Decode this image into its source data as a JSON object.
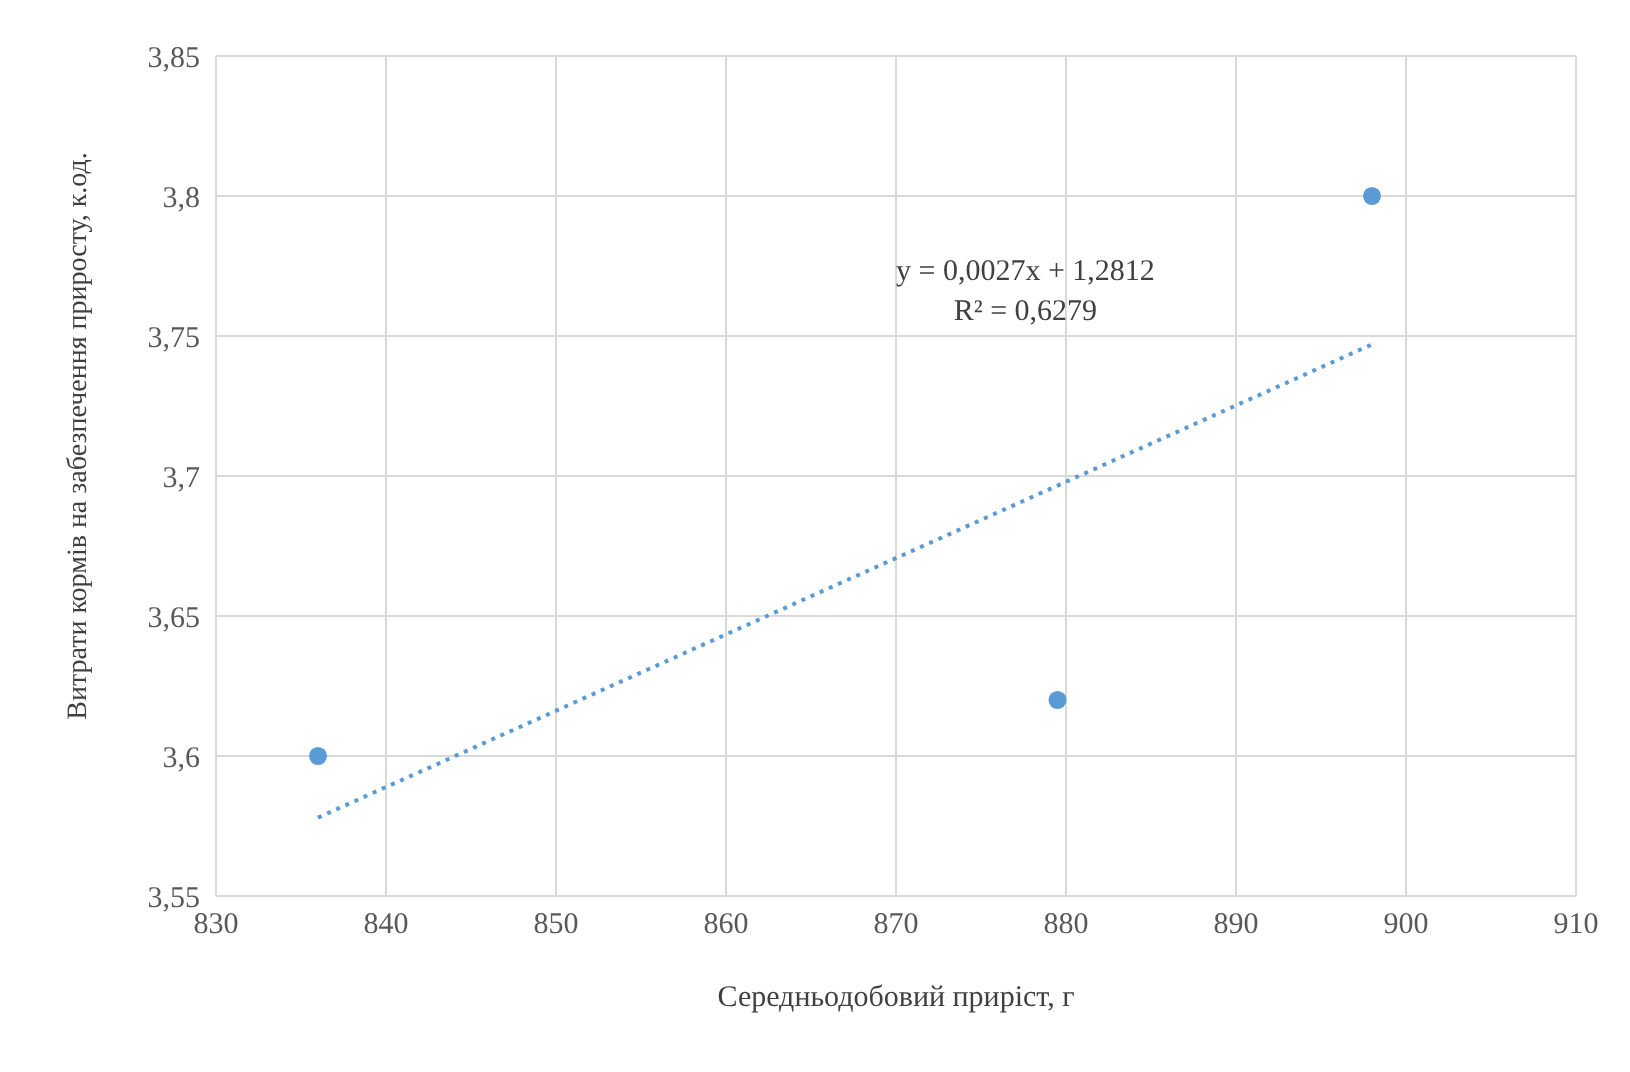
{
  "chart_data": {
    "type": "scatter",
    "xlabel": "Середньодобовий приріст, г",
    "ylabel": "Витрати кормів на забезпечення приросту, к.од.",
    "series": [
      {
        "color": "#5b9bd5",
        "x": [
          836,
          879.5,
          898
        ],
        "values": [
          3.6,
          3.62,
          3.8
        ]
      },
      {
        "type": "line",
        "color": "#5b9bd5",
        "line_style": "dotted",
        "marker": "none",
        "x": [
          836,
          898
        ],
        "values": [
          3.578,
          3.747
        ]
      }
    ],
    "xlim": [
      830,
      910
    ],
    "xticks": [
      830,
      840,
      850,
      860,
      870,
      880,
      890,
      900,
      910
    ],
    "ylim": [
      3.55,
      3.85
    ],
    "yticks": [
      {
        "value": 3.55,
        "label": "3,55"
      },
      {
        "value": 3.6,
        "label": "3,6"
      },
      {
        "value": 3.65,
        "label": "3,65"
      },
      {
        "value": 3.7,
        "label": "3,7"
      },
      {
        "value": 3.75,
        "label": "3,75"
      },
      {
        "value": 3.8,
        "label": "3,8"
      },
      {
        "value": 3.85,
        "label": "3,85"
      }
    ],
    "grid": true,
    "marker": "circle",
    "annotations": [
      "y = 0,0027x + 1,2812",
      "R² = 0,6279"
    ]
  }
}
